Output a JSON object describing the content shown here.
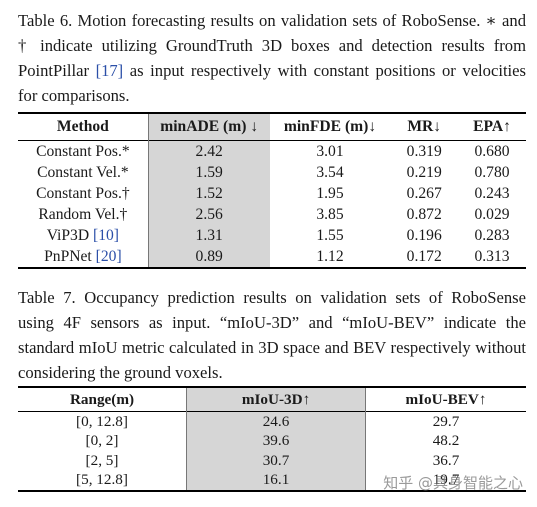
{
  "table6": {
    "caption_label": "Table 6.",
    "caption_text_1": " Motion forecasting results on validation sets of RoboSense. ∗ and † indicate utilizing GroundTruth 3D boxes and detection results from PointPillar ",
    "caption_cite": "[17]",
    "caption_text_2": " as input respectively with constant positions or velocities for comparisons.",
    "headers": [
      "Method",
      "minADE (m) ↓",
      "minFDE (m)↓",
      "MR↓",
      "EPA↑"
    ],
    "rows": [
      {
        "method": "Constant Pos.*",
        "cite": "",
        "minADE": "2.42",
        "minFDE": "3.01",
        "MR": "0.319",
        "EPA": "0.680"
      },
      {
        "method": "Constant Vel.*",
        "cite": "",
        "minADE": "1.59",
        "minFDE": "3.54",
        "MR": "0.219",
        "EPA": "0.780"
      },
      {
        "method": "Constant Pos.†",
        "cite": "",
        "minADE": "1.52",
        "minFDE": "1.95",
        "MR": "0.267",
        "EPA": "0.243"
      },
      {
        "method": "Random Vel.†",
        "cite": "",
        "minADE": "2.56",
        "minFDE": "3.85",
        "MR": "0.872",
        "EPA": "0.029"
      },
      {
        "method": "ViP3D ",
        "cite": "[10]",
        "minADE": "1.31",
        "minFDE": "1.55",
        "MR": "0.196",
        "EPA": "0.283"
      },
      {
        "method": "PnPNet ",
        "cite": "[20]",
        "minADE": "0.89",
        "minFDE": "1.12",
        "MR": "0.172",
        "EPA": "0.313"
      }
    ]
  },
  "table7": {
    "caption_label": "Table 7.",
    "caption_text": " Occupancy prediction results on validation sets of RoboSense using 4F sensors as input. “mIoU-3D” and “mIoU-BEV” indicate the standard mIoU metric calculated in 3D space and BEV respectively without considering the ground voxels.",
    "headers": [
      "Range(m)",
      "mIoU-3D↑",
      "mIoU-BEV↑"
    ],
    "rows": [
      {
        "range": "[0, 12.8]",
        "miou3d": "24.6",
        "mioubev": "29.7"
      },
      {
        "range": "[0, 2]",
        "miou3d": "39.6",
        "mioubev": "48.2"
      },
      {
        "range": "[2, 5]",
        "miou3d": "30.7",
        "mioubev": "36.7"
      },
      {
        "range": "[5, 12.8]",
        "miou3d": "16.1",
        "mioubev": "19.7"
      }
    ]
  },
  "watermark": "知乎 @具身智能之心",
  "colors": {
    "highlight": "#d6d6d6",
    "citation": "#2b4fa8"
  }
}
